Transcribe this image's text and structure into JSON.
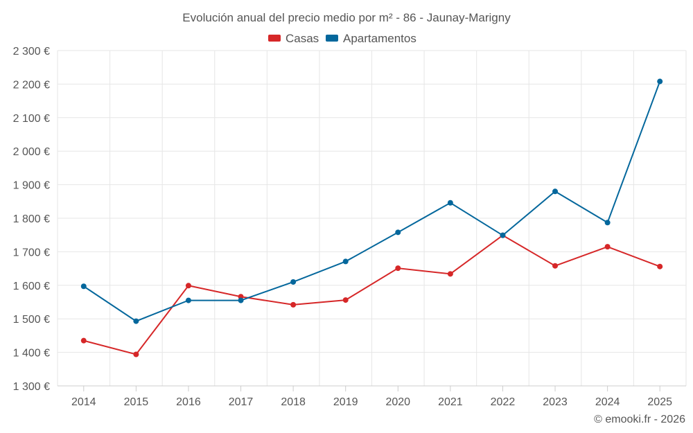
{
  "chart_data": {
    "type": "line",
    "title": "Evolución anual del precio medio por m² - 86 - Jaunay-Marigny",
    "categories": [
      "2014",
      "2015",
      "2016",
      "2017",
      "2018",
      "2019",
      "2020",
      "2021",
      "2022",
      "2023",
      "2024",
      "2025"
    ],
    "series": [
      {
        "name": "Casas",
        "color": "#d62728",
        "values": [
          1435,
          1394,
          1599,
          1566,
          1542,
          1556,
          1651,
          1634,
          1749,
          1658,
          1715,
          1656
        ]
      },
      {
        "name": "Apartamentos",
        "color": "#04679c",
        "values": [
          1597,
          1493,
          1555,
          1555,
          1610,
          1671,
          1758,
          1846,
          1749,
          1880,
          1787,
          2208
        ]
      }
    ],
    "ylim": [
      1300,
      2300
    ],
    "yticks": [
      1300,
      1400,
      1500,
      1600,
      1700,
      1800,
      1900,
      2000,
      2100,
      2200,
      2300
    ],
    "ytick_labels": [
      "1 300 €",
      "1 400 €",
      "1 500 €",
      "1 600 €",
      "1 700 €",
      "1 800 €",
      "1 900 €",
      "2 000 €",
      "2 100 €",
      "2 200 €",
      "2 300 €"
    ],
    "xlabel": "",
    "ylabel": "",
    "grid": true,
    "legend_position": "top-center"
  },
  "credit": "© emooki.fr - 2026"
}
